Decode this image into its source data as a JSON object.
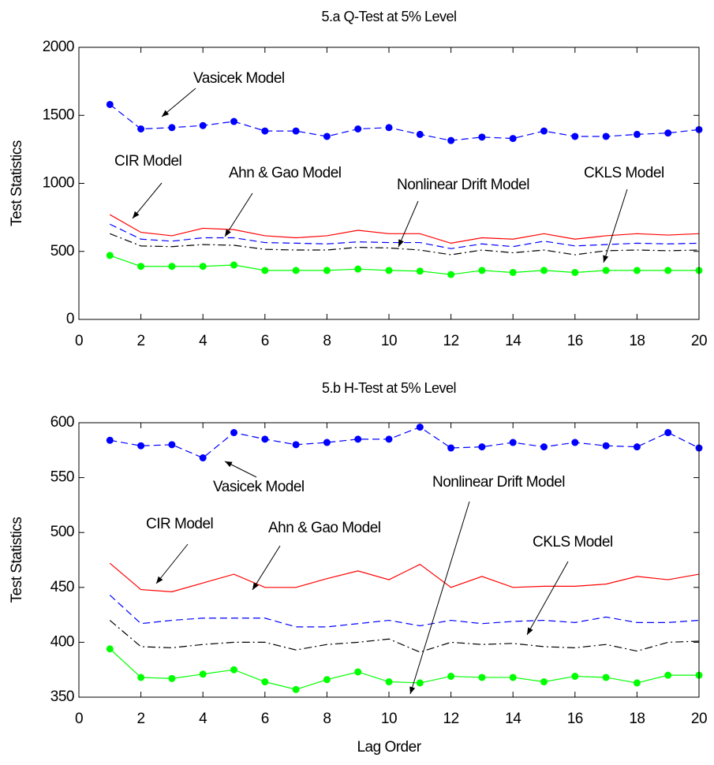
{
  "chart_data": [
    {
      "type": "line",
      "title": "5.a Q-Test at 5% Level",
      "ylabel": "Test Statistics",
      "x": [
        1,
        2,
        3,
        4,
        5,
        6,
        7,
        8,
        9,
        10,
        11,
        12,
        13,
        14,
        15,
        16,
        17,
        18,
        19,
        20
      ],
      "xlim": [
        0,
        20
      ],
      "xticks": [
        0,
        2,
        4,
        6,
        8,
        10,
        12,
        14,
        16,
        18,
        20
      ],
      "ylim": [
        0,
        2000
      ],
      "yticks": [
        0,
        500,
        1000,
        1500,
        2000
      ],
      "annotations": [
        "Vasicek Model",
        "CIR Model",
        "Ahn & Gao Model",
        "Nonlinear Drift Model",
        "CKLS Model"
      ],
      "series": [
        {
          "name": "Vasicek Model",
          "color": "#0000ff",
          "linestyle": "dashed",
          "marker": "circle",
          "values": [
            1580,
            1400,
            1410,
            1425,
            1455,
            1385,
            1385,
            1345,
            1400,
            1410,
            1360,
            1315,
            1340,
            1330,
            1385,
            1345,
            1345,
            1360,
            1370,
            1395
          ]
        },
        {
          "name": "CIR Model",
          "color": "#ff0000",
          "linestyle": "solid",
          "marker": "none",
          "values": [
            770,
            640,
            615,
            670,
            660,
            615,
            600,
            615,
            655,
            630,
            630,
            560,
            600,
            590,
            630,
            590,
            615,
            630,
            620,
            630
          ]
        },
        {
          "name": "Ahn & Gao Model",
          "color": "#0000ff",
          "linestyle": "dashed",
          "marker": "none",
          "values": [
            700,
            590,
            575,
            600,
            600,
            565,
            560,
            555,
            570,
            565,
            565,
            520,
            555,
            535,
            575,
            540,
            550,
            560,
            555,
            560
          ]
        },
        {
          "name": "Nonlinear Drift Model",
          "color": "#000000",
          "linestyle": "dashdot",
          "marker": "none",
          "values": [
            630,
            540,
            535,
            550,
            545,
            515,
            510,
            510,
            530,
            525,
            510,
            475,
            510,
            490,
            510,
            475,
            505,
            510,
            505,
            510
          ]
        },
        {
          "name": "CKLS Model",
          "color": "#00ff00",
          "linestyle": "solid",
          "marker": "circle",
          "values": [
            470,
            390,
            390,
            390,
            400,
            360,
            360,
            360,
            370,
            360,
            355,
            330,
            360,
            345,
            360,
            345,
            360,
            360,
            360,
            360
          ]
        }
      ]
    },
    {
      "type": "line",
      "title": "5.b H-Test at 5% Level",
      "ylabel": "Test Statistics",
      "xlabel": "Lag Order",
      "x": [
        1,
        2,
        3,
        4,
        5,
        6,
        7,
        8,
        9,
        10,
        11,
        12,
        13,
        14,
        15,
        16,
        17,
        18,
        19,
        20
      ],
      "xlim": [
        0,
        20
      ],
      "xticks": [
        0,
        2,
        4,
        6,
        8,
        10,
        12,
        14,
        16,
        18,
        20
      ],
      "ylim": [
        350,
        600
      ],
      "yticks": [
        350,
        400,
        450,
        500,
        550,
        600
      ],
      "annotations": [
        "Vasicek Model",
        "CIR Model",
        "Ahn & Gao Model",
        "Nonlinear Drift Model",
        "CKLS Model"
      ],
      "series": [
        {
          "name": "Vasicek Model",
          "color": "#0000ff",
          "linestyle": "dashed",
          "marker": "circle",
          "values": [
            584,
            579,
            580,
            568,
            591,
            585,
            580,
            582,
            585,
            585,
            596,
            577,
            578,
            582,
            578,
            582,
            579,
            578,
            591,
            577
          ]
        },
        {
          "name": "CIR Model",
          "color": "#ff0000",
          "linestyle": "solid",
          "marker": "none",
          "values": [
            472,
            448,
            446,
            454,
            462,
            450,
            450,
            458,
            465,
            457,
            471,
            450,
            460,
            450,
            451,
            451,
            453,
            460,
            457,
            462
          ]
        },
        {
          "name": "Ahn & Gao Model",
          "color": "#0000ff",
          "linestyle": "dashed",
          "marker": "none",
          "values": [
            443,
            417,
            420,
            422,
            422,
            422,
            414,
            414,
            417,
            420,
            415,
            420,
            417,
            419,
            420,
            418,
            423,
            418,
            418,
            420
          ]
        },
        {
          "name": "Nonlinear Drift Model",
          "color": "#000000",
          "linestyle": "dashdot",
          "marker": "none",
          "values": [
            420,
            396,
            395,
            398,
            400,
            400,
            393,
            398,
            400,
            403,
            391,
            400,
            398,
            399,
            396,
            395,
            398,
            392,
            400,
            401
          ]
        },
        {
          "name": "CKLS Model",
          "color": "#00ff00",
          "linestyle": "solid",
          "marker": "circle",
          "values": [
            394,
            368,
            367,
            371,
            375,
            364,
            357,
            366,
            373,
            364,
            363,
            369,
            368,
            368,
            364,
            369,
            368,
            363,
            370,
            370
          ]
        }
      ]
    }
  ]
}
